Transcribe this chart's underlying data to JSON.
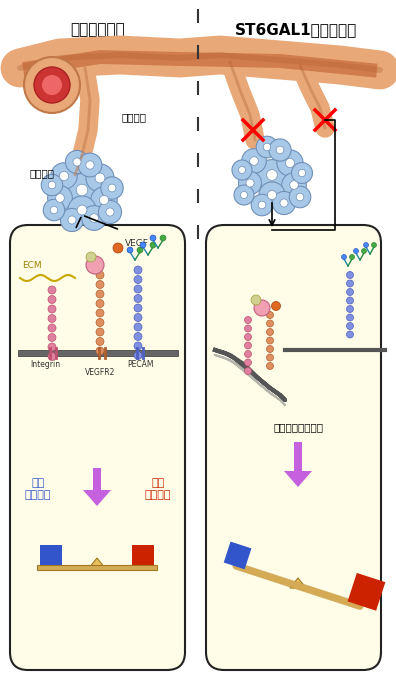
{
  "title_left": "野生型マウス",
  "title_right": "ST6GAL1欠損マウス",
  "label_tumor": "腫瘍細胞",
  "label_vessel": "新生血管",
  "label_ecm": "ECM",
  "label_vegf": "VEGF",
  "label_integrin": "Integrin",
  "label_vegfr2": "VEGFR2",
  "label_pecam": "PECAM",
  "label_dysreg": "調節不全シグナル",
  "label_survival": "生存\nシグナル",
  "label_death": "死の\nシグナル",
  "bg_color": "#ffffff",
  "box_bg": "#fffde7",
  "box_border": "#222222",
  "vessel_color": "#e8a878",
  "tumor_cell_color": "#a8c8e8",
  "ecm_color": "#c8a800",
  "membrane_color": "#b0b0b0",
  "survival_color": "#3355cc",
  "death_color": "#cc2200",
  "balance_board_color": "#d4aa55",
  "triangle_color": "#e8c060",
  "arrow_color": "#bb44dd",
  "text_color": "#000000"
}
